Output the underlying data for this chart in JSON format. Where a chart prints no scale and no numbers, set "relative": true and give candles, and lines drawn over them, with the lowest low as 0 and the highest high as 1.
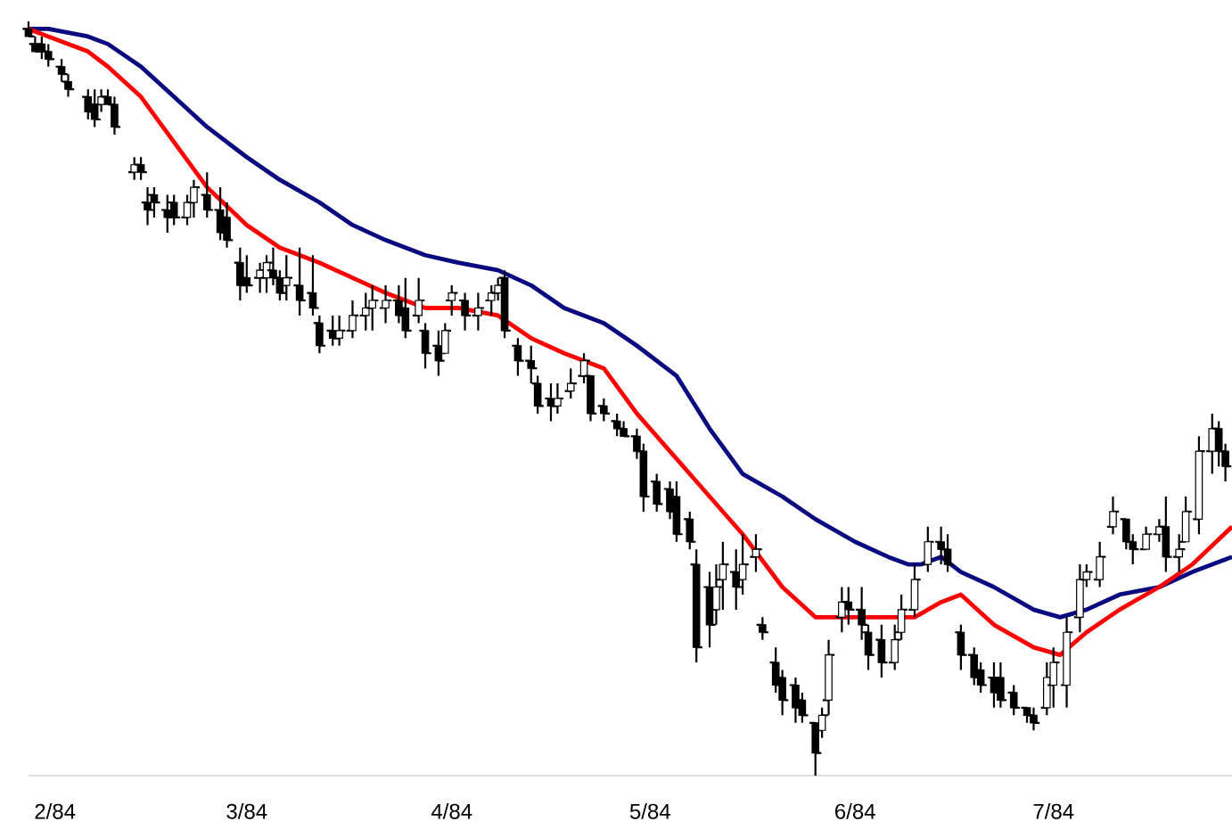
{
  "chart_data": {
    "type": "candlestick",
    "relative": true,
    "xlim": [
      "1984-01-28",
      "1984-07-28"
    ],
    "xticks": [
      {
        "value": "1984-02-01",
        "label": "2/84"
      },
      {
        "value": "1984-03-01",
        "label": "3/84"
      },
      {
        "value": "1984-04-01",
        "label": "4/84"
      },
      {
        "value": "1984-05-01",
        "label": "5/84"
      },
      {
        "value": "1984-06-01",
        "label": "6/84"
      },
      {
        "value": "1984-07-01",
        "label": "7/84"
      }
    ],
    "x": [
      "1984-01-28",
      "1984-01-29",
      "1984-01-30",
      "1984-01-31",
      "1984-02-02",
      "1984-02-03",
      "1984-02-06",
      "1984-02-07",
      "1984-02-08",
      "1984-02-09",
      "1984-02-10",
      "1984-02-13",
      "1984-02-14",
      "1984-02-15",
      "1984-02-16",
      "1984-02-18",
      "1984-02-19",
      "1984-02-21",
      "1984-02-22",
      "1984-02-24",
      "1984-02-26",
      "1984-02-27",
      "1984-02-29",
      "1984-03-01",
      "1984-03-03",
      "1984-03-04",
      "1984-03-05",
      "1984-03-06",
      "1984-03-07",
      "1984-03-09",
      "1984-03-11",
      "1984-03-12",
      "1984-03-14",
      "1984-03-15",
      "1984-03-17",
      "1984-03-19",
      "1984-03-20",
      "1984-03-22",
      "1984-03-24",
      "1984-03-25",
      "1984-03-27",
      "1984-03-28",
      "1984-03-30",
      "1984-03-31",
      "1984-04-01",
      "1984-04-03",
      "1984-04-05",
      "1984-04-07",
      "1984-04-08",
      "1984-04-09",
      "1984-04-11",
      "1984-04-13",
      "1984-04-14",
      "1984-04-16",
      "1984-04-17",
      "1984-04-19",
      "1984-04-21",
      "1984-04-22",
      "1984-04-24",
      "1984-04-26",
      "1984-04-27",
      "1984-04-29",
      "1984-04-30",
      "1984-05-02",
      "1984-05-04",
      "1984-05-05",
      "1984-05-07",
      "1984-05-08",
      "1984-05-10",
      "1984-05-11",
      "1984-05-12",
      "1984-05-14",
      "1984-05-15",
      "1984-05-17",
      "1984-05-18",
      "1984-05-20",
      "1984-05-21",
      "1984-05-23",
      "1984-05-24",
      "1984-05-26",
      "1984-05-27",
      "1984-05-28",
      "1984-05-30",
      "1984-05-31",
      "1984-06-02",
      "1984-06-03",
      "1984-06-05",
      "1984-06-07",
      "1984-06-08",
      "1984-06-10",
      "1984-06-12",
      "1984-06-14",
      "1984-06-15",
      "1984-06-17",
      "1984-06-19",
      "1984-06-20",
      "1984-06-22",
      "1984-06-23",
      "1984-06-25",
      "1984-06-27",
      "1984-06-28",
      "1984-06-30",
      "1984-07-01",
      "1984-07-03",
      "1984-07-05",
      "1984-07-06",
      "1984-07-08",
      "1984-07-10",
      "1984-07-12",
      "1984-07-13",
      "1984-07-15",
      "1984-07-17",
      "1984-07-18",
      "1984-07-20",
      "1984-07-21",
      "1984-07-23",
      "1984-07-25",
      "1984-07-26",
      "1984-07-27"
    ],
    "ohlc": [
      [
        0.99,
        1.0,
        0.98,
        0.98
      ],
      [
        0.97,
        0.98,
        0.96,
        0.96
      ],
      [
        0.97,
        0.98,
        0.95,
        0.96
      ],
      [
        0.96,
        0.97,
        0.94,
        0.95
      ],
      [
        0.94,
        0.95,
        0.92,
        0.93
      ],
      [
        0.92,
        0.93,
        0.9,
        0.91
      ],
      [
        0.9,
        0.91,
        0.87,
        0.88
      ],
      [
        0.89,
        0.91,
        0.86,
        0.87
      ],
      [
        0.89,
        0.91,
        0.88,
        0.9
      ],
      [
        0.9,
        0.91,
        0.89,
        0.89
      ],
      [
        0.89,
        0.9,
        0.85,
        0.86
      ],
      [
        0.8,
        0.82,
        0.79,
        0.81
      ],
      [
        0.81,
        0.82,
        0.79,
        0.8
      ],
      [
        0.76,
        0.78,
        0.73,
        0.75
      ],
      [
        0.77,
        0.78,
        0.74,
        0.76
      ],
      [
        0.75,
        0.77,
        0.72,
        0.74
      ],
      [
        0.76,
        0.77,
        0.73,
        0.74
      ],
      [
        0.74,
        0.77,
        0.73,
        0.76
      ],
      [
        0.76,
        0.79,
        0.74,
        0.78
      ],
      [
        0.77,
        0.8,
        0.74,
        0.75
      ],
      [
        0.75,
        0.78,
        0.71,
        0.72
      ],
      [
        0.74,
        0.76,
        0.7,
        0.71
      ],
      [
        0.68,
        0.7,
        0.63,
        0.65
      ],
      [
        0.66,
        0.69,
        0.64,
        0.65
      ],
      [
        0.66,
        0.68,
        0.64,
        0.67
      ],
      [
        0.66,
        0.69,
        0.64,
        0.68
      ],
      [
        0.67,
        0.7,
        0.65,
        0.66
      ],
      [
        0.66,
        0.67,
        0.63,
        0.64
      ],
      [
        0.65,
        0.69,
        0.63,
        0.66
      ],
      [
        0.65,
        0.7,
        0.61,
        0.63
      ],
      [
        0.64,
        0.69,
        0.61,
        0.62
      ],
      [
        0.6,
        0.61,
        0.56,
        0.57
      ],
      [
        0.59,
        0.61,
        0.57,
        0.58
      ],
      [
        0.58,
        0.61,
        0.57,
        0.59
      ],
      [
        0.59,
        0.63,
        0.58,
        0.61
      ],
      [
        0.61,
        0.64,
        0.59,
        0.62
      ],
      [
        0.62,
        0.65,
        0.59,
        0.63
      ],
      [
        0.62,
        0.65,
        0.6,
        0.63
      ],
      [
        0.63,
        0.65,
        0.6,
        0.61
      ],
      [
        0.62,
        0.66,
        0.58,
        0.59
      ],
      [
        0.61,
        0.66,
        0.6,
        0.63
      ],
      [
        0.59,
        0.6,
        0.54,
        0.56
      ],
      [
        0.57,
        0.59,
        0.53,
        0.55
      ],
      [
        0.56,
        0.6,
        0.56,
        0.59
      ],
      [
        0.63,
        0.65,
        0.61,
        0.64
      ],
      [
        0.63,
        0.64,
        0.59,
        0.61
      ],
      [
        0.61,
        0.64,
        0.59,
        0.62
      ],
      [
        0.63,
        0.65,
        0.61,
        0.64
      ],
      [
        0.64,
        0.66,
        0.63,
        0.65
      ],
      [
        0.66,
        0.67,
        0.58,
        0.59
      ],
      [
        0.57,
        0.58,
        0.53,
        0.55
      ],
      [
        0.55,
        0.57,
        0.52,
        0.54
      ],
      [
        0.52,
        0.53,
        0.48,
        0.49
      ],
      [
        0.5,
        0.52,
        0.47,
        0.49
      ],
      [
        0.49,
        0.52,
        0.48,
        0.5
      ],
      [
        0.51,
        0.54,
        0.5,
        0.52
      ],
      [
        0.53,
        0.56,
        0.52,
        0.55
      ],
      [
        0.53,
        0.53,
        0.47,
        0.48
      ],
      [
        0.49,
        0.5,
        0.47,
        0.48
      ],
      [
        0.47,
        0.48,
        0.45,
        0.46
      ],
      [
        0.46,
        0.47,
        0.45,
        0.45
      ],
      [
        0.45,
        0.46,
        0.42,
        0.43
      ],
      [
        0.43,
        0.44,
        0.35,
        0.37
      ],
      [
        0.39,
        0.4,
        0.35,
        0.36
      ],
      [
        0.38,
        0.39,
        0.34,
        0.35
      ],
      [
        0.37,
        0.39,
        0.31,
        0.32
      ],
      [
        0.34,
        0.35,
        0.3,
        0.31
      ],
      [
        0.28,
        0.3,
        0.15,
        0.17
      ],
      [
        0.25,
        0.27,
        0.17,
        0.2
      ],
      [
        0.22,
        0.28,
        0.2,
        0.25
      ],
      [
        0.26,
        0.31,
        0.22,
        0.28
      ],
      [
        0.27,
        0.3,
        0.22,
        0.25
      ],
      [
        0.26,
        0.32,
        0.24,
        0.28
      ],
      [
        0.29,
        0.32,
        0.27,
        0.3
      ],
      [
        0.2,
        0.21,
        0.18,
        0.19
      ],
      [
        0.15,
        0.17,
        0.11,
        0.12
      ],
      [
        0.13,
        0.14,
        0.08,
        0.1
      ],
      [
        0.12,
        0.13,
        0.07,
        0.09
      ],
      [
        0.1,
        0.11,
        0.07,
        0.08
      ],
      [
        0.07,
        0.07,
        0.0,
        0.03
      ],
      [
        0.06,
        0.09,
        0.05,
        0.08
      ],
      [
        0.1,
        0.18,
        0.08,
        0.16
      ],
      [
        0.21,
        0.25,
        0.19,
        0.23
      ],
      [
        0.23,
        0.25,
        0.2,
        0.22
      ],
      [
        0.22,
        0.25,
        0.18,
        0.2
      ],
      [
        0.19,
        0.2,
        0.14,
        0.16
      ],
      [
        0.18,
        0.2,
        0.13,
        0.15
      ],
      [
        0.15,
        0.2,
        0.14,
        0.18
      ],
      [
        0.19,
        0.24,
        0.18,
        0.22
      ],
      [
        0.22,
        0.28,
        0.21,
        0.26
      ],
      [
        0.28,
        0.33,
        0.27,
        0.31
      ],
      [
        0.31,
        0.33,
        0.28,
        0.3
      ],
      [
        0.3,
        0.32,
        0.27,
        0.28
      ],
      [
        0.19,
        0.2,
        0.14,
        0.16
      ],
      [
        0.16,
        0.17,
        0.12,
        0.13
      ],
      [
        0.14,
        0.15,
        0.11,
        0.12
      ],
      [
        0.13,
        0.15,
        0.09,
        0.11
      ],
      [
        0.13,
        0.15,
        0.09,
        0.1
      ],
      [
        0.11,
        0.12,
        0.08,
        0.09
      ],
      [
        0.09,
        0.09,
        0.07,
        0.08
      ],
      [
        0.08,
        0.09,
        0.06,
        0.07
      ],
      [
        0.09,
        0.15,
        0.08,
        0.13
      ],
      [
        0.12,
        0.17,
        0.09,
        0.15
      ],
      [
        0.12,
        0.21,
        0.09,
        0.19
      ],
      [
        0.21,
        0.28,
        0.19,
        0.26
      ],
      [
        0.26,
        0.28,
        0.25,
        0.27
      ],
      [
        0.26,
        0.31,
        0.25,
        0.29
      ],
      [
        0.33,
        0.37,
        0.32,
        0.35
      ],
      [
        0.34,
        0.34,
        0.3,
        0.31
      ],
      [
        0.31,
        0.32,
        0.28,
        0.3
      ],
      [
        0.3,
        0.33,
        0.3,
        0.32
      ],
      [
        0.32,
        0.34,
        0.31,
        0.33
      ],
      [
        0.33,
        0.37,
        0.27,
        0.29
      ],
      [
        0.29,
        0.32,
        0.27,
        0.3
      ],
      [
        0.31,
        0.37,
        0.31,
        0.35
      ],
      [
        0.34,
        0.45,
        0.32,
        0.43
      ],
      [
        0.43,
        0.48,
        0.4,
        0.46
      ],
      [
        0.46,
        0.47,
        0.41,
        0.43
      ],
      [
        0.43,
        0.44,
        0.39,
        0.41
      ]
    ],
    "color": "#000000",
    "series": [
      {
        "type": "line",
        "color": "#0a0a80",
        "x": [
          "1984-01-28",
          "1984-01-31",
          "1984-02-06",
          "1984-02-09",
          "1984-02-14",
          "1984-02-19",
          "1984-02-24",
          "1984-03-01",
          "1984-03-06",
          "1984-03-12",
          "1984-03-17",
          "1984-03-22",
          "1984-03-28",
          "1984-04-02",
          "1984-04-08",
          "1984-04-13",
          "1984-04-18",
          "1984-04-24",
          "1984-04-29",
          "1984-05-05",
          "1984-05-10",
          "1984-05-15",
          "1984-05-21",
          "1984-05-26",
          "1984-06-01",
          "1984-06-06",
          "1984-06-09",
          "1984-06-11",
          "1984-06-14",
          "1984-06-17",
          "1984-06-22",
          "1984-06-28",
          "1984-07-02",
          "1984-07-06",
          "1984-07-11",
          "1984-07-17",
          "1984-07-22",
          "1984-07-28"
        ],
        "values": [
          0.99,
          0.99,
          0.98,
          0.97,
          0.94,
          0.9,
          0.86,
          0.82,
          0.79,
          0.76,
          0.73,
          0.71,
          0.69,
          0.68,
          0.67,
          0.65,
          0.62,
          0.6,
          0.57,
          0.53,
          0.46,
          0.4,
          0.37,
          0.34,
          0.31,
          0.29,
          0.28,
          0.28,
          0.29,
          0.27,
          0.25,
          0.22,
          0.21,
          0.22,
          0.24,
          0.25,
          0.27,
          0.29
        ]
      },
      {
        "type": "line",
        "color": "#ff0000",
        "x": [
          "1984-01-28",
          "1984-01-31",
          "1984-02-06",
          "1984-02-09",
          "1984-02-14",
          "1984-02-19",
          "1984-02-24",
          "1984-03-01",
          "1984-03-06",
          "1984-03-12",
          "1984-03-17",
          "1984-03-22",
          "1984-03-28",
          "1984-04-02",
          "1984-04-08",
          "1984-04-13",
          "1984-04-18",
          "1984-04-24",
          "1984-04-29",
          "1984-05-05",
          "1984-05-10",
          "1984-05-15",
          "1984-05-21",
          "1984-05-26",
          "1984-06-01",
          "1984-06-06",
          "1984-06-10",
          "1984-06-14",
          "1984-06-17",
          "1984-06-22",
          "1984-06-28",
          "1984-07-02",
          "1984-07-06",
          "1984-07-11",
          "1984-07-17",
          "1984-07-22",
          "1984-07-28"
        ],
        "values": [
          0.99,
          0.98,
          0.96,
          0.94,
          0.9,
          0.84,
          0.78,
          0.73,
          0.7,
          0.68,
          0.66,
          0.64,
          0.62,
          0.62,
          0.61,
          0.58,
          0.56,
          0.54,
          0.48,
          0.42,
          0.37,
          0.32,
          0.25,
          0.21,
          0.21,
          0.21,
          0.21,
          0.23,
          0.24,
          0.2,
          0.17,
          0.16,
          0.19,
          0.22,
          0.25,
          0.28,
          0.33
        ]
      }
    ]
  }
}
